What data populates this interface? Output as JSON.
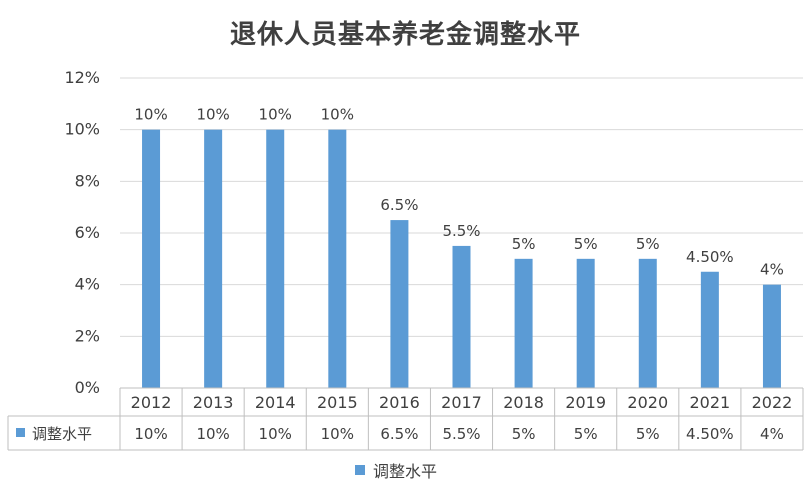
{
  "chart_data": {
    "type": "bar",
    "title": "退休人员基本养老金调整水平",
    "categories": [
      "2012",
      "2013",
      "2014",
      "2015",
      "2016",
      "2017",
      "2018",
      "2019",
      "2020",
      "2021",
      "2022"
    ],
    "series": [
      {
        "name": "调整水平",
        "values": [
          10,
          10,
          10,
          10,
          6.5,
          5.5,
          5,
          5,
          5,
          4.5,
          4
        ],
        "labels": [
          "10%",
          "10%",
          "10%",
          "10%",
          "6.5%",
          "5.5%",
          "5%",
          "5%",
          "5%",
          "4.50%",
          "4%"
        ],
        "color": "#5b9bd5"
      }
    ],
    "ylim": [
      0,
      12
    ],
    "yticks": [
      "0%",
      "2%",
      "4%",
      "6%",
      "8%",
      "10%",
      "12%"
    ],
    "ytick_values": [
      0,
      2,
      4,
      6,
      8,
      10,
      12
    ],
    "grid": true,
    "legend": "bottom",
    "data_table": true
  }
}
